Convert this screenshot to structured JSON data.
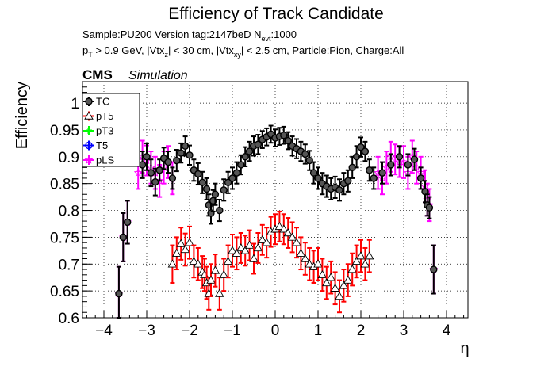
{
  "chart_data": {
    "type": "scatter",
    "title": "Efficiency of Track Candidate",
    "subtitle_line1": "Sample:PU200   Version tag:2147beD  N",
    "subtitle_line1_sub": "evt",
    "subtitle_line1_tail": ":1000",
    "subtitle_line2": {
      "p": "p",
      "p_sub": "T",
      "a": " > 0.9 GeV, |Vtx",
      "a_sub": "z",
      "b": "| < 30 cm, |Vtx",
      "b_sub": "xy",
      "c": "| < 2.5 cm, Particle:Pion, Charge:All"
    },
    "cms_label": "CMS",
    "cms_sublabel": "Simulation",
    "xlabel": "η",
    "ylabel": "Efficiency",
    "xlim": [
      -4.5,
      4.5
    ],
    "ylim": [
      0.6,
      1.04
    ],
    "xticks": [
      -4,
      -3,
      -2,
      -1,
      0,
      1,
      2,
      3,
      4
    ],
    "xtick_labels": [
      "−4",
      "−3",
      "−2",
      "−1",
      "0",
      "1",
      "2",
      "3",
      "4"
    ],
    "yticks": [
      0.6,
      0.65,
      0.7,
      0.75,
      0.8,
      0.85,
      0.9,
      0.95,
      1.0
    ],
    "ytick_labels": [
      "0.6",
      "0.65",
      "0.7",
      "0.75",
      "0.8",
      "0.85",
      "0.9",
      "0.95",
      "1"
    ],
    "grid": true,
    "legend_position": "top-left",
    "series": [
      {
        "name": "TC",
        "color": "#000000",
        "marker": "filled-circle",
        "points": [
          [
            -3.65,
            0.645,
            0.05
          ],
          [
            -3.55,
            0.75,
            0.045
          ],
          [
            -3.45,
            0.778,
            0.04
          ],
          [
            -3.1,
            0.885,
            0.025
          ],
          [
            -3.0,
            0.9,
            0.025
          ],
          [
            -2.9,
            0.87,
            0.025
          ],
          [
            -2.8,
            0.853,
            0.025
          ],
          [
            -2.7,
            0.875,
            0.02
          ],
          [
            -2.6,
            0.897,
            0.02
          ],
          [
            -2.5,
            0.89,
            0.02
          ],
          [
            -2.4,
            0.86,
            0.02
          ],
          [
            -2.3,
            0.893,
            0.02
          ],
          [
            -2.2,
            0.907,
            0.018
          ],
          [
            -2.1,
            0.92,
            0.018
          ],
          [
            -2.0,
            0.903,
            0.018
          ],
          [
            -1.9,
            0.875,
            0.02
          ],
          [
            -1.8,
            0.868,
            0.02
          ],
          [
            -1.7,
            0.852,
            0.02
          ],
          [
            -1.6,
            0.84,
            0.02
          ],
          [
            -1.55,
            0.81,
            0.02
          ],
          [
            -1.5,
            0.795,
            0.02
          ],
          [
            -1.45,
            0.818,
            0.02
          ],
          [
            -1.4,
            0.83,
            0.02
          ],
          [
            -1.3,
            0.8,
            0.02
          ],
          [
            -1.2,
            0.838,
            0.02
          ],
          [
            -1.1,
            0.852,
            0.02
          ],
          [
            -1.0,
            0.86,
            0.02
          ],
          [
            -0.9,
            0.87,
            0.02
          ],
          [
            -0.8,
            0.885,
            0.018
          ],
          [
            -0.7,
            0.9,
            0.018
          ],
          [
            -0.6,
            0.91,
            0.018
          ],
          [
            -0.5,
            0.92,
            0.018
          ],
          [
            -0.4,
            0.923,
            0.018
          ],
          [
            -0.3,
            0.932,
            0.016
          ],
          [
            -0.2,
            0.937,
            0.016
          ],
          [
            -0.1,
            0.942,
            0.016
          ],
          [
            0.0,
            0.935,
            0.016
          ],
          [
            0.1,
            0.938,
            0.016
          ],
          [
            0.2,
            0.94,
            0.016
          ],
          [
            0.3,
            0.93,
            0.016
          ],
          [
            0.4,
            0.92,
            0.018
          ],
          [
            0.5,
            0.915,
            0.018
          ],
          [
            0.6,
            0.91,
            0.018
          ],
          [
            0.7,
            0.905,
            0.018
          ],
          [
            0.8,
            0.893,
            0.018
          ],
          [
            0.9,
            0.87,
            0.02
          ],
          [
            1.0,
            0.86,
            0.02
          ],
          [
            1.1,
            0.85,
            0.02
          ],
          [
            1.2,
            0.845,
            0.02
          ],
          [
            1.3,
            0.84,
            0.02
          ],
          [
            1.4,
            0.843,
            0.02
          ],
          [
            1.5,
            0.838,
            0.02
          ],
          [
            1.6,
            0.85,
            0.02
          ],
          [
            1.7,
            0.855,
            0.02
          ],
          [
            1.8,
            0.88,
            0.02
          ],
          [
            1.9,
            0.9,
            0.02
          ],
          [
            2.0,
            0.918,
            0.018
          ],
          [
            2.1,
            0.91,
            0.018
          ],
          [
            2.2,
            0.875,
            0.02
          ],
          [
            2.3,
            0.86,
            0.02
          ],
          [
            2.5,
            0.87,
            0.02
          ],
          [
            2.7,
            0.885,
            0.02
          ],
          [
            2.9,
            0.9,
            0.02
          ],
          [
            3.1,
            0.885,
            0.02
          ],
          [
            3.25,
            0.895,
            0.02
          ],
          [
            3.4,
            0.86,
            0.02
          ],
          [
            3.5,
            0.835,
            0.02
          ],
          [
            3.55,
            0.81,
            0.02
          ],
          [
            3.6,
            0.805,
            0.02
          ],
          [
            3.7,
            0.69,
            0.045
          ]
        ]
      },
      {
        "name": "pT5",
        "color": "#ff0000",
        "marker": "open-triangle",
        "points": [
          [
            -2.4,
            0.7,
            0.035
          ],
          [
            -2.3,
            0.72,
            0.03
          ],
          [
            -2.2,
            0.738,
            0.03
          ],
          [
            -2.1,
            0.727,
            0.03
          ],
          [
            -2.0,
            0.74,
            0.03
          ],
          [
            -1.9,
            0.705,
            0.03
          ],
          [
            -1.8,
            0.7,
            0.03
          ],
          [
            -1.7,
            0.685,
            0.03
          ],
          [
            -1.65,
            0.68,
            0.03
          ],
          [
            -1.6,
            0.665,
            0.03
          ],
          [
            -1.55,
            0.645,
            0.03
          ],
          [
            -1.5,
            0.67,
            0.03
          ],
          [
            -1.4,
            0.688,
            0.03
          ],
          [
            -1.3,
            0.645,
            0.03
          ],
          [
            -1.2,
            0.68,
            0.03
          ],
          [
            -1.1,
            0.705,
            0.03
          ],
          [
            -1.0,
            0.725,
            0.03
          ],
          [
            -0.9,
            0.72,
            0.03
          ],
          [
            -0.8,
            0.73,
            0.028
          ],
          [
            -0.7,
            0.725,
            0.028
          ],
          [
            -0.6,
            0.735,
            0.028
          ],
          [
            -0.5,
            0.71,
            0.028
          ],
          [
            -0.4,
            0.73,
            0.028
          ],
          [
            -0.3,
            0.745,
            0.028
          ],
          [
            -0.2,
            0.74,
            0.028
          ],
          [
            -0.1,
            0.76,
            0.028
          ],
          [
            0.0,
            0.765,
            0.028
          ],
          [
            0.1,
            0.77,
            0.028
          ],
          [
            0.2,
            0.765,
            0.028
          ],
          [
            0.3,
            0.758,
            0.028
          ],
          [
            0.4,
            0.75,
            0.028
          ],
          [
            0.5,
            0.74,
            0.028
          ],
          [
            0.6,
            0.72,
            0.03
          ],
          [
            0.7,
            0.71,
            0.03
          ],
          [
            0.8,
            0.7,
            0.03
          ],
          [
            0.9,
            0.695,
            0.03
          ],
          [
            1.0,
            0.7,
            0.03
          ],
          [
            1.1,
            0.68,
            0.03
          ],
          [
            1.2,
            0.665,
            0.03
          ],
          [
            1.3,
            0.675,
            0.03
          ],
          [
            1.4,
            0.655,
            0.03
          ],
          [
            1.5,
            0.64,
            0.03
          ],
          [
            1.6,
            0.66,
            0.03
          ],
          [
            1.7,
            0.67,
            0.03
          ],
          [
            1.8,
            0.69,
            0.03
          ],
          [
            1.9,
            0.705,
            0.03
          ],
          [
            2.0,
            0.715,
            0.03
          ],
          [
            2.1,
            0.7,
            0.03
          ],
          [
            2.2,
            0.715,
            0.03
          ]
        ]
      },
      {
        "name": "pT3",
        "color": "#00ff00",
        "marker": "filled-cross",
        "points": []
      },
      {
        "name": "T5",
        "color": "#0000ff",
        "marker": "open-circle",
        "points": []
      },
      {
        "name": "pLS",
        "color": "#ff00ff",
        "marker": "open-star",
        "points": [
          [
            -3.65,
            0.645,
            0.05
          ],
          [
            -3.55,
            0.75,
            0.045
          ],
          [
            -3.45,
            0.778,
            0.04
          ],
          [
            -3.2,
            0.87,
            0.03
          ],
          [
            -3.1,
            0.9,
            0.03
          ],
          [
            -3.0,
            0.893,
            0.028
          ],
          [
            -2.9,
            0.88,
            0.03
          ],
          [
            -2.8,
            0.87,
            0.03
          ],
          [
            -2.7,
            0.855,
            0.03
          ],
          [
            -2.6,
            0.88,
            0.03
          ],
          [
            -2.5,
            0.89,
            0.03
          ],
          [
            -2.4,
            0.86,
            0.03
          ],
          [
            2.4,
            0.87,
            0.03
          ],
          [
            2.5,
            0.86,
            0.03
          ],
          [
            2.6,
            0.88,
            0.03
          ],
          [
            2.7,
            0.9,
            0.028
          ],
          [
            2.8,
            0.895,
            0.028
          ],
          [
            2.9,
            0.89,
            0.028
          ],
          [
            3.0,
            0.89,
            0.03
          ],
          [
            3.1,
            0.87,
            0.03
          ],
          [
            3.2,
            0.9,
            0.03
          ],
          [
            3.3,
            0.88,
            0.03
          ],
          [
            3.4,
            0.87,
            0.03
          ],
          [
            3.5,
            0.845,
            0.03
          ],
          [
            3.55,
            0.82,
            0.03
          ],
          [
            3.6,
            0.81,
            0.03
          ],
          [
            3.7,
            0.69,
            0.045
          ]
        ]
      }
    ]
  }
}
